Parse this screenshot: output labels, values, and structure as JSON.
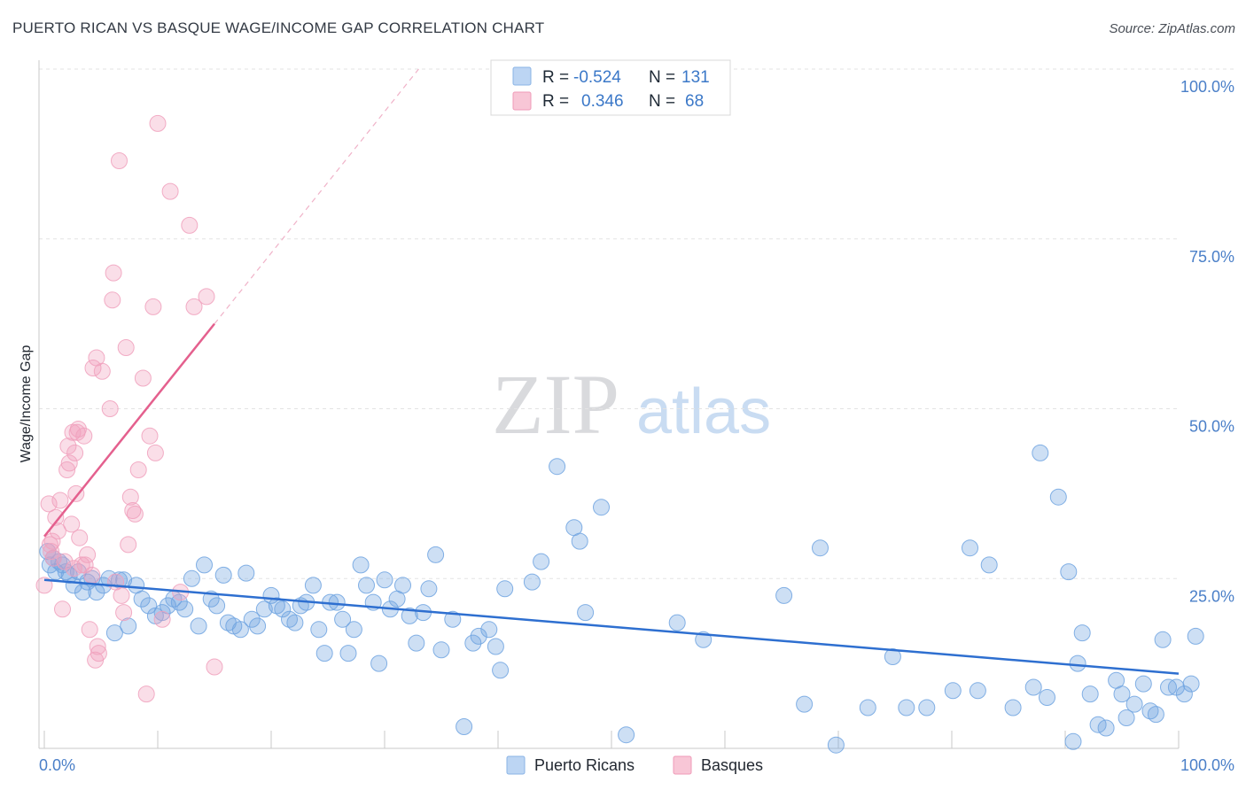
{
  "title": "PUERTO RICAN VS BASQUE WAGE/INCOME GAP CORRELATION CHART",
  "source": "Source: ZipAtlas.com",
  "watermark": {
    "part1": "ZIP",
    "part2": "atlas"
  },
  "colors": {
    "blue": "#6fa3e0",
    "blue_line": "#2e6fd0",
    "pink": "#f0a0bc",
    "pink_line": "#e4608e",
    "tick": "#4a7fc8"
  },
  "legend": {
    "rows": [
      {
        "r_label": "R =",
        "r_value": "-0.524",
        "n_label": "N =",
        "n_value": "131"
      },
      {
        "r_label": "R =",
        "r_value": "0.346",
        "n_label": "N =",
        "n_value": "68"
      }
    ]
  },
  "bottom_legend": [
    "Puerto Ricans",
    "Basques"
  ],
  "chart_data": {
    "type": "scatter",
    "title": "PUERTO RICAN VS BASQUE WAGE/INCOME GAP CORRELATION CHART",
    "xlabel": "",
    "ylabel": "Wage/Income Gap",
    "xlim": [
      0,
      100
    ],
    "ylim": [
      0,
      100
    ],
    "x_tick_labels": [
      "0.0%",
      "100.0%"
    ],
    "y_ticks": [
      25,
      50,
      75,
      100
    ],
    "y_tick_labels": [
      "25.0%",
      "50.0%",
      "75.0%",
      "100.0%"
    ],
    "grid": true,
    "legend_position": "top-center",
    "series": [
      {
        "name": "Puerto Ricans",
        "r": -0.524,
        "n": 131,
        "trend": {
          "x": [
            0,
            100
          ],
          "y": [
            24.8,
            11.0
          ]
        },
        "points": [
          [
            0.3,
            29
          ],
          [
            0.5,
            27
          ],
          [
            0.8,
            28
          ],
          [
            1.0,
            26
          ],
          [
            1.3,
            27.5
          ],
          [
            1.6,
            27
          ],
          [
            1.9,
            26
          ],
          [
            2.2,
            25.5
          ],
          [
            2.6,
            24
          ],
          [
            3.0,
            26
          ],
          [
            3.4,
            23
          ],
          [
            3.8,
            24.5
          ],
          [
            4.2,
            25
          ],
          [
            4.6,
            23
          ],
          [
            5.2,
            24
          ],
          [
            5.7,
            25
          ],
          [
            6.2,
            17
          ],
          [
            6.6,
            24.8
          ],
          [
            7.0,
            24.8
          ],
          [
            7.4,
            18
          ],
          [
            8.1,
            24
          ],
          [
            8.6,
            22
          ],
          [
            9.2,
            21
          ],
          [
            9.8,
            19.5
          ],
          [
            10.4,
            20
          ],
          [
            10.9,
            21
          ],
          [
            11.4,
            22
          ],
          [
            11.9,
            21.5
          ],
          [
            12.4,
            20.5
          ],
          [
            13.0,
            25
          ],
          [
            13.6,
            18
          ],
          [
            14.1,
            27
          ],
          [
            14.7,
            22
          ],
          [
            15.2,
            21
          ],
          [
            15.8,
            25.5
          ],
          [
            16.2,
            18.5
          ],
          [
            16.7,
            18
          ],
          [
            17.3,
            17.5
          ],
          [
            17.8,
            25.8
          ],
          [
            18.3,
            19
          ],
          [
            18.8,
            18
          ],
          [
            19.4,
            20.5
          ],
          [
            20.0,
            22.5
          ],
          [
            20.5,
            21
          ],
          [
            21.0,
            20.5
          ],
          [
            21.6,
            19
          ],
          [
            22.1,
            18.5
          ],
          [
            22.6,
            21
          ],
          [
            23.1,
            21.5
          ],
          [
            23.7,
            24
          ],
          [
            24.2,
            17.5
          ],
          [
            24.7,
            14
          ],
          [
            25.2,
            21.5
          ],
          [
            25.8,
            21.5
          ],
          [
            26.3,
            19
          ],
          [
            26.8,
            14
          ],
          [
            27.3,
            17.5
          ],
          [
            27.9,
            27
          ],
          [
            28.4,
            24
          ],
          [
            29.0,
            21.5
          ],
          [
            29.5,
            12.5
          ],
          [
            30.0,
            24.8
          ],
          [
            30.5,
            20.5
          ],
          [
            31.1,
            22
          ],
          [
            31.6,
            24
          ],
          [
            32.2,
            19.5
          ],
          [
            32.8,
            15.5
          ],
          [
            33.4,
            20
          ],
          [
            33.9,
            23.5
          ],
          [
            34.5,
            28.5
          ],
          [
            35.0,
            14.5
          ],
          [
            36.0,
            19
          ],
          [
            37.0,
            3.2
          ],
          [
            37.8,
            15.5
          ],
          [
            38.3,
            16.5
          ],
          [
            39.2,
            17.5
          ],
          [
            39.8,
            15
          ],
          [
            40.2,
            11.5
          ],
          [
            40.6,
            23.5
          ],
          [
            43.0,
            24.5
          ],
          [
            43.8,
            27.5
          ],
          [
            45.2,
            41.5
          ],
          [
            46.7,
            32.5
          ],
          [
            47.2,
            30.5
          ],
          [
            47.7,
            20
          ],
          [
            49.1,
            35.5
          ],
          [
            51.3,
            2
          ],
          [
            55.8,
            18.5
          ],
          [
            58.1,
            16
          ],
          [
            65.2,
            22.5
          ],
          [
            67.0,
            6.5
          ],
          [
            68.4,
            29.5
          ],
          [
            69.8,
            0.5
          ],
          [
            72.6,
            6
          ],
          [
            74.8,
            13.5
          ],
          [
            76.0,
            6
          ],
          [
            77.8,
            6
          ],
          [
            80.1,
            8.5
          ],
          [
            81.6,
            29.5
          ],
          [
            82.3,
            8.5
          ],
          [
            83.3,
            27
          ],
          [
            85.4,
            6
          ],
          [
            87.2,
            9
          ],
          [
            87.8,
            43.5
          ],
          [
            88.4,
            7.5
          ],
          [
            89.4,
            37
          ],
          [
            90.3,
            26
          ],
          [
            90.7,
            1
          ],
          [
            91.1,
            12.5
          ],
          [
            91.5,
            17
          ],
          [
            92.2,
            8
          ],
          [
            92.9,
            3.5
          ],
          [
            93.6,
            3
          ],
          [
            94.5,
            10
          ],
          [
            95.0,
            8
          ],
          [
            95.4,
            4.5
          ],
          [
            96.1,
            6.5
          ],
          [
            96.9,
            9.5
          ],
          [
            97.5,
            5.5
          ],
          [
            98.0,
            5
          ],
          [
            98.6,
            16
          ],
          [
            99.1,
            9
          ],
          [
            99.8,
            9
          ],
          [
            100.5,
            8
          ],
          [
            101.1,
            9.5
          ],
          [
            101.5,
            16.5
          ]
        ]
      },
      {
        "name": "Basques",
        "r": 0.346,
        "n": 68,
        "trend": {
          "x": [
            0,
            15
          ],
          "y": [
            31.2,
            62.5
          ],
          "dashed_extension": {
            "x": [
              15,
              33
            ],
            "y": [
              62.5,
              100
            ]
          }
        },
        "points": [
          [
            0.0,
            24
          ],
          [
            0.4,
            36
          ],
          [
            0.5,
            30
          ],
          [
            0.6,
            29
          ],
          [
            0.7,
            30.5
          ],
          [
            0.8,
            28
          ],
          [
            1.0,
            34
          ],
          [
            1.2,
            32
          ],
          [
            1.4,
            36.5
          ],
          [
            1.6,
            20.5
          ],
          [
            1.8,
            27.5
          ],
          [
            2.0,
            41
          ],
          [
            2.1,
            44.5
          ],
          [
            2.2,
            42
          ],
          [
            2.4,
            33
          ],
          [
            2.5,
            46.5
          ],
          [
            2.6,
            26.5
          ],
          [
            2.7,
            43.5
          ],
          [
            2.8,
            37.5
          ],
          [
            2.9,
            46.5
          ],
          [
            3.0,
            47
          ],
          [
            3.1,
            31
          ],
          [
            3.3,
            27
          ],
          [
            3.5,
            46
          ],
          [
            3.6,
            27
          ],
          [
            3.8,
            28.5
          ],
          [
            4.0,
            17.5
          ],
          [
            4.2,
            25.5
          ],
          [
            4.3,
            56
          ],
          [
            4.5,
            13
          ],
          [
            4.6,
            57.5
          ],
          [
            4.7,
            15
          ],
          [
            4.8,
            14
          ],
          [
            5.1,
            55.5
          ],
          [
            5.8,
            50
          ],
          [
            6.0,
            66
          ],
          [
            6.1,
            70
          ],
          [
            6.3,
            24.5
          ],
          [
            6.6,
            86.5
          ],
          [
            6.8,
            22.5
          ],
          [
            7.0,
            20
          ],
          [
            7.2,
            59
          ],
          [
            7.4,
            30
          ],
          [
            7.6,
            37
          ],
          [
            7.8,
            35
          ],
          [
            8.0,
            34.5
          ],
          [
            8.3,
            41
          ],
          [
            8.7,
            54.5
          ],
          [
            9.0,
            8
          ],
          [
            9.3,
            46
          ],
          [
            9.6,
            65
          ],
          [
            9.8,
            43.5
          ],
          [
            10.0,
            92
          ],
          [
            10.4,
            19
          ],
          [
            11.1,
            82
          ],
          [
            12.0,
            23
          ],
          [
            12.8,
            77
          ],
          [
            13.2,
            65
          ],
          [
            14.3,
            66.5
          ],
          [
            15.0,
            12
          ]
        ]
      }
    ]
  }
}
